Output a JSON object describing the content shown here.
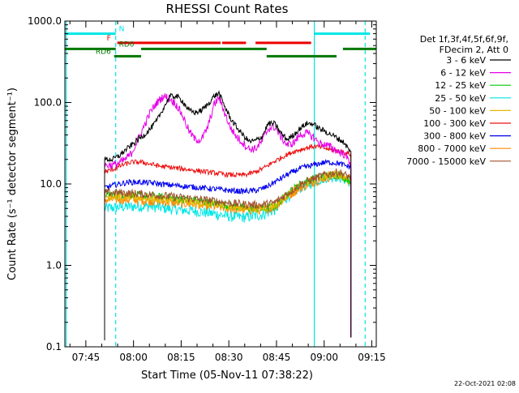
{
  "chart_data": {
    "type": "line",
    "title": "RHESSI Count Rates",
    "xlabel": "Start Time (05-Nov-11 07:38:22)",
    "ylabel": "Count Rate (s⁻¹ detector segment⁻¹)",
    "yscale": "log",
    "ylim": [
      0.1,
      1000
    ],
    "xlim_minutes": [
      0,
      98
    ],
    "x_ticks": [
      {
        "label": "07:45",
        "minute": 6.6
      },
      {
        "label": "08:00",
        "minute": 21.6
      },
      {
        "label": "08:15",
        "minute": 36.6
      },
      {
        "label": "08:30",
        "minute": 51.6
      },
      {
        "label": "08:45",
        "minute": 66.6
      },
      {
        "label": "09:00",
        "minute": 81.6
      },
      {
        "label": "09:15",
        "minute": 96.6
      }
    ],
    "y_ticks": [
      {
        "label": "0.1",
        "value": 0.1
      },
      {
        "label": "1.0",
        "value": 1
      },
      {
        "label": "10.0",
        "value": 10
      },
      {
        "label": "100.0",
        "value": 100
      },
      {
        "label": "1000.0",
        "value": 1000
      }
    ],
    "legend_header": [
      "Det 1f,3f,4f,5f,6f,9f,",
      "FDecim 2, Att 0"
    ],
    "series": [
      {
        "name": "3 - 6 keV",
        "color": "#000000",
        "x": [
          12.5,
          15,
          17,
          19,
          21,
          23,
          25,
          27,
          29,
          31,
          33,
          35,
          37,
          39,
          41,
          43,
          45,
          47,
          48.5,
          50,
          52,
          54,
          56,
          58,
          60,
          62,
          64,
          66,
          68,
          70,
          72,
          74,
          76,
          78,
          80,
          82,
          84,
          86,
          88,
          90
        ],
        "values": [
          20,
          20,
          22,
          26,
          30,
          35,
          40,
          48,
          60,
          85,
          118,
          120,
          105,
          80,
          75,
          80,
          95,
          120,
          130,
          95,
          65,
          50,
          40,
          33,
          34,
          38,
          55,
          55,
          42,
          35,
          40,
          48,
          55,
          55,
          48,
          44,
          40,
          36,
          32,
          24
        ]
      },
      {
        "name": "6 - 12 keV",
        "color": "#e600e6",
        "x": [
          12.5,
          15,
          17,
          19,
          21,
          23,
          25,
          27,
          29,
          31,
          33,
          35,
          37,
          39,
          41,
          43,
          45,
          47,
          48.5,
          50,
          52,
          54,
          56,
          58,
          60,
          62,
          64,
          66,
          68,
          70,
          72,
          74,
          76,
          78,
          80,
          82,
          84,
          86,
          88,
          90
        ],
        "values": [
          17,
          17,
          18,
          20,
          24,
          35,
          52,
          78,
          100,
          120,
          112,
          95,
          70,
          45,
          35,
          35,
          50,
          95,
          115,
          80,
          50,
          38,
          32,
          27,
          27,
          33,
          48,
          50,
          38,
          30,
          32,
          40,
          42,
          38,
          32,
          30,
          28,
          25,
          23,
          18
        ]
      },
      {
        "name": "12 - 25 keV",
        "color": "#00cc00",
        "x": [
          12.5,
          17,
          22,
          27,
          32,
          37,
          42,
          47,
          52,
          57,
          62,
          66,
          70,
          74,
          78,
          82,
          86,
          90
        ],
        "values": [
          7.5,
          7.5,
          7.3,
          7.0,
          6.8,
          6.5,
          6.2,
          5.8,
          5.4,
          5.0,
          4.9,
          5.3,
          7.5,
          10,
          11.5,
          12.5,
          13,
          11
        ]
      },
      {
        "name": "25 - 50 keV",
        "color": "#00e6e6",
        "x": [
          12.5,
          17,
          22,
          27,
          32,
          37,
          42,
          47,
          52,
          57,
          62,
          66,
          70,
          74,
          78,
          82,
          86,
          90
        ],
        "values": [
          5.0,
          5.2,
          5.3,
          5.3,
          5.0,
          4.8,
          4.6,
          4.3,
          4.0,
          3.9,
          4.2,
          4.8,
          7.0,
          9.0,
          10.5,
          12,
          12.5,
          10.5
        ]
      },
      {
        "name": "50 - 100 keV",
        "color": "#e6b800",
        "x": [
          12.5,
          17,
          22,
          27,
          32,
          37,
          42,
          47,
          52,
          57,
          62,
          66,
          70,
          74,
          78,
          82,
          86,
          90
        ],
        "values": [
          7.0,
          7.0,
          6.8,
          6.6,
          6.4,
          6.1,
          5.8,
          5.5,
          5.2,
          5.0,
          5.0,
          5.4,
          7.3,
          9.5,
          11,
          12.5,
          13.5,
          11.5
        ]
      },
      {
        "name": "100 - 300 keV",
        "color": "#ee1111",
        "x": [
          12.5,
          15,
          18,
          21,
          24,
          27,
          30,
          33,
          36,
          39,
          42,
          45,
          48,
          51,
          54,
          57,
          60,
          63,
          66,
          69,
          72,
          75,
          78,
          81,
          84,
          87,
          90
        ],
        "values": [
          14,
          15,
          17,
          18.5,
          18.5,
          17.5,
          16.5,
          16,
          15.5,
          15,
          14.5,
          14,
          13.5,
          13,
          12.8,
          13,
          14,
          16,
          19,
          22,
          25,
          27,
          29,
          28,
          26,
          25,
          23
        ]
      },
      {
        "name": "300 - 800 keV",
        "color": "#0000ee",
        "x": [
          12.5,
          16,
          20,
          24,
          28,
          32,
          36,
          40,
          44,
          48,
          52,
          56,
          60,
          63,
          66,
          70,
          74,
          78,
          82,
          86,
          90
        ],
        "values": [
          9.0,
          9.8,
          10.5,
          10.5,
          10.2,
          9.8,
          9.5,
          9.2,
          8.9,
          8.6,
          8.3,
          8.1,
          8.3,
          9.0,
          10.5,
          13,
          15.5,
          17,
          18.5,
          18,
          16
        ]
      },
      {
        "name": "800 - 7000 keV",
        "color": "#ff8800",
        "x": [
          12.5,
          17,
          22,
          27,
          32,
          37,
          42,
          47,
          52,
          57,
          62,
          66,
          70,
          74,
          78,
          82,
          86,
          90
        ],
        "values": [
          6.4,
          6.5,
          6.4,
          6.2,
          6.0,
          5.8,
          5.6,
          5.3,
          5.0,
          4.8,
          4.8,
          5.2,
          7.0,
          9.0,
          10.5,
          12,
          12.8,
          10.8
        ]
      },
      {
        "name": "7000 - 15000 keV",
        "color": "#a0522d",
        "x": [
          12.5,
          17,
          22,
          27,
          32,
          37,
          42,
          47,
          52,
          57,
          62,
          66,
          70,
          74,
          78,
          82,
          86,
          90
        ],
        "values": [
          7.8,
          7.8,
          7.6,
          7.4,
          7.1,
          6.8,
          6.5,
          6.2,
          5.8,
          5.6,
          5.5,
          5.9,
          7.6,
          9.8,
          11.5,
          13,
          14,
          12
        ]
      }
    ],
    "flag_bars": [
      {
        "name": "N",
        "color": "#00e6e6",
        "y_value": 700,
        "segments": [
          [
            0,
            16
          ],
          [
            78.5,
            96
          ]
        ]
      },
      {
        "name": "F",
        "color": "#ee0000",
        "y_value": 540,
        "segments": [
          [
            16.5,
            49
          ],
          [
            49.5,
            57
          ],
          [
            60,
            77.5
          ]
        ]
      },
      {
        "name": "RD0",
        "color": "#007700",
        "y_value": 455,
        "segments": [
          [
            0,
            16
          ],
          [
            24,
            63.5
          ],
          [
            87.5,
            98
          ]
        ]
      },
      {
        "name": "RD6",
        "color": "#007700",
        "y_value": 370,
        "segments": [
          [
            15.5,
            24
          ],
          [
            63.5,
            85.5
          ]
        ]
      }
    ],
    "vertical_markers": [
      {
        "minute": 0.4,
        "style": "solid",
        "color": "#00e6e6"
      },
      {
        "minute": 16,
        "style": "dashed",
        "color": "#00e6e6"
      },
      {
        "minute": 78.5,
        "style": "solid",
        "color": "#00e6e6"
      },
      {
        "minute": 94.5,
        "style": "dashed",
        "color": "#00e6e6"
      }
    ],
    "timestamp": "22-Oct-2021 02:08"
  }
}
